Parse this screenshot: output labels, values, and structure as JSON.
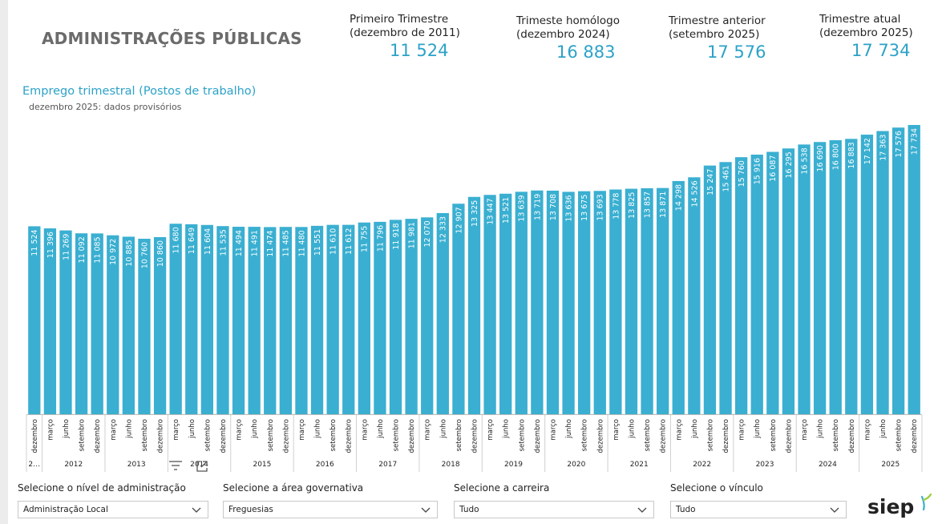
{
  "header": {
    "title": "ADMINISTRAÇÕES PÚBLICAS"
  },
  "kpis": [
    {
      "label_1": "Primeiro Trimestre",
      "label_2": "(dezembro de 2011)",
      "value": "11 524"
    },
    {
      "label_1": "Trimeste homólogo",
      "label_2": "(dezembro 2024)",
      "value": "16 883"
    },
    {
      "label_1": "Trimestre anterior",
      "label_2": "(setembro 2025)",
      "value": "17 576"
    },
    {
      "label_1": "Trimestre atual",
      "label_2": "(dezembro 2025)",
      "value": "17 734"
    }
  ],
  "chart_data": {
    "type": "bar",
    "title": "Emprego trimestral (Postos de trabalho)",
    "subtitle": "dezembro 2025: dados provisórios",
    "xlabel": "",
    "ylabel": "",
    "ylim": [
      0,
      18200
    ],
    "categories": [
      "dezembro",
      "março",
      "junho",
      "setembro",
      "dezembro",
      "março",
      "junho",
      "setembro",
      "dezembro",
      "março",
      "junho",
      "setembro",
      "dezembro",
      "março",
      "junho",
      "setembro",
      "dezembro",
      "março",
      "junho",
      "setembro",
      "dezembro",
      "março",
      "junho",
      "setembro",
      "dezembro",
      "março",
      "junho",
      "setembro",
      "dezembro",
      "março",
      "junho",
      "setembro",
      "dezembro",
      "março",
      "junho",
      "setembro",
      "dezembro",
      "março",
      "junho",
      "setembro",
      "dezembro",
      "março",
      "junho",
      "setembro",
      "dezembro",
      "março",
      "junho",
      "setembro",
      "dezembro",
      "março",
      "junho",
      "setembro",
      "dezembro",
      "março",
      "junho",
      "setembro",
      "dezembro"
    ],
    "values": [
      11524,
      11396,
      11269,
      11092,
      11085,
      10972,
      10885,
      10760,
      10860,
      11680,
      11649,
      11604,
      11535,
      11494,
      11491,
      11474,
      11485,
      11480,
      11551,
      11610,
      11612,
      11755,
      11796,
      11918,
      11981,
      12070,
      12333,
      12907,
      13325,
      13447,
      13521,
      13639,
      13719,
      13708,
      13636,
      13675,
      13693,
      13778,
      13825,
      13857,
      13871,
      14298,
      14526,
      15247,
      15461,
      15760,
      15916,
      16087,
      16295,
      16538,
      16690,
      16800,
      16883,
      17142,
      17363,
      17576,
      17734
    ],
    "value_labels": [
      "11 524",
      "11 396",
      "11 269",
      "11 092",
      "11 085",
      "10 972",
      "10 885",
      "10 760",
      "10 860",
      "11 680",
      "11 649",
      "11 604",
      "11 535",
      "11 494",
      "11 491",
      "11 474",
      "11 485",
      "11 480",
      "11 551",
      "11 610",
      "11 612",
      "11 755",
      "11 796",
      "11 918",
      "11 981",
      "12 070",
      "12 333",
      "12 907",
      "13 325",
      "13 447",
      "13 521",
      "13 639",
      "13 719",
      "13 708",
      "13 636",
      "13 675",
      "13 693",
      "13 778",
      "13 825",
      "13 857",
      "13 871",
      "14 298",
      "14 526",
      "15 247",
      "15 461",
      "15 760",
      "15 916",
      "16 087",
      "16 295",
      "16 538",
      "16 690",
      "16 800",
      "16 883",
      "17 142",
      "17 363",
      "17 576",
      "17 734"
    ],
    "years": [
      {
        "label": "2…",
        "count": 1
      },
      {
        "label": "2012",
        "count": 4
      },
      {
        "label": "2013",
        "count": 4
      },
      {
        "label": "2014",
        "count": 4
      },
      {
        "label": "2015",
        "count": 4
      },
      {
        "label": "2016",
        "count": 4
      },
      {
        "label": "2017",
        "count": 4
      },
      {
        "label": "2018",
        "count": 4
      },
      {
        "label": "2019",
        "count": 4
      },
      {
        "label": "2020",
        "count": 4
      },
      {
        "label": "2021",
        "count": 4
      },
      {
        "label": "2022",
        "count": 4
      },
      {
        "label": "2023",
        "count": 4
      },
      {
        "label": "2024",
        "count": 4
      },
      {
        "label": "2025",
        "count": 4
      }
    ],
    "bar_color": "#3aafd1"
  },
  "filters": [
    {
      "label": "Selecione o nível de administração",
      "value": "Administração Local"
    },
    {
      "label": "Selecione a área governativa",
      "value": "Freguesias"
    },
    {
      "label": "Selecione a carreira",
      "value": "Tudo"
    },
    {
      "label": "Selecione o vínculo",
      "value": "Tudo"
    }
  ],
  "icons": {
    "filter": "filter-icon",
    "expand": "focus-mode-icon",
    "chevron": "chevron-down-icon",
    "logo": "siep-logo"
  },
  "logo": {
    "text": "siep"
  },
  "colors": {
    "accent": "#2ca2c8",
    "bar": "#3aafd1",
    "title": "#6b6b6b"
  }
}
